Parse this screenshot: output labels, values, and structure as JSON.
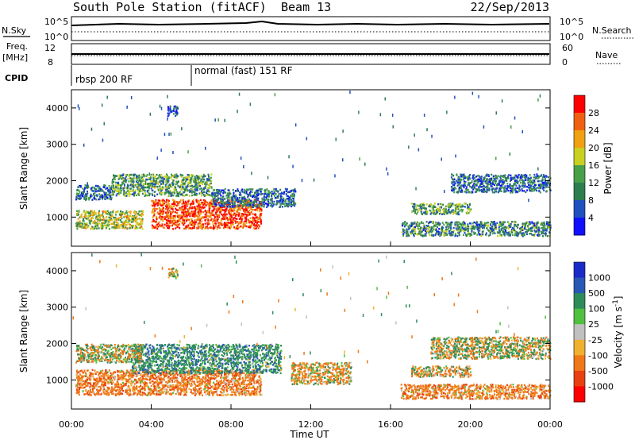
{
  "header": {
    "station": "South Pole Station (fitACF)",
    "beam": "Beam 13",
    "date": "22/Sep/2013"
  },
  "aux_panel": {
    "nsky_label": "N.Sky",
    "nsearch_label": "N.Search",
    "nsky_ticks": [
      "10^5",
      "10^0"
    ],
    "freq_label": "Freq.",
    "freq_unit": "[MHz]",
    "freq_ticks": [
      "12",
      "8"
    ],
    "nave_label": "Nave",
    "nave_ticks": [
      "60",
      "0"
    ],
    "cpid_label": "CPID",
    "cpid_modes": [
      {
        "label": "rbsp 200 RF",
        "start_hour": 0
      },
      {
        "label": "normal (fast) 151 RF",
        "start_hour": 6
      }
    ]
  },
  "colors": {
    "power": [
      "#1010ff",
      "#2050c0",
      "#2e7d4f",
      "#48a048",
      "#c8d020",
      "#f0a010",
      "#f06010",
      "#ff0000"
    ],
    "velocity": [
      "#ff0000",
      "#e84010",
      "#f07818",
      "#f0b030",
      "#c0c0c0",
      "#50c040",
      "#2e8c5a",
      "#2858b4",
      "#1a2cc8"
    ]
  },
  "chart_data": [
    {
      "type": "heatmap",
      "title": "",
      "ylabel": "Slant Range [km]",
      "xlabel": "",
      "xlim": [
        0,
        24
      ],
      "ylim": [
        200,
        4500
      ],
      "yticks": [
        "1000",
        "2000",
        "3000",
        "4000"
      ],
      "colorbar_label": "Power [dB]",
      "colorbar_ticks": [
        "4",
        "8",
        "12",
        "16",
        "20",
        "24",
        "28"
      ],
      "colorbar_range": [
        0,
        30
      ],
      "regions": [
        {
          "t0": 0.2,
          "t1": 3.6,
          "r0": 700,
          "r1": 1200,
          "value": 16
        },
        {
          "t0": 4.0,
          "t1": 9.5,
          "r0": 700,
          "r1": 1500,
          "value": 26
        },
        {
          "t0": 0.2,
          "t1": 2.0,
          "r0": 1500,
          "r1": 1900,
          "value": 8
        },
        {
          "t0": 2.0,
          "t1": 7.0,
          "r0": 1600,
          "r1": 2200,
          "value": 12
        },
        {
          "t0": 7.0,
          "t1": 11.2,
          "r0": 1300,
          "r1": 1800,
          "value": 8
        },
        {
          "t0": 16.5,
          "t1": 24.0,
          "r0": 500,
          "r1": 900,
          "value": 10
        },
        {
          "t0": 17.0,
          "t1": 20.0,
          "r0": 1100,
          "r1": 1400,
          "value": 12
        },
        {
          "t0": 19.0,
          "t1": 24.0,
          "r0": 1700,
          "r1": 2200,
          "value": 8
        },
        {
          "t0": 4.8,
          "t1": 5.3,
          "r0": 3800,
          "r1": 4100,
          "value": 6
        }
      ]
    },
    {
      "type": "heatmap",
      "title": "",
      "ylabel": "Slant Range [km]",
      "xlabel": "Time UT",
      "xlim": [
        0,
        24
      ],
      "ylim": [
        200,
        4500
      ],
      "yticks": [
        "1000",
        "2000",
        "3000",
        "4000"
      ],
      "xticks": [
        "00:00",
        "04:00",
        "08:00",
        "12:00",
        "16:00",
        "20:00",
        "00:00"
      ],
      "colorbar_label": "Velocity [m s^-1]",
      "colorbar_ticks": [
        "1000",
        "500",
        "100",
        "25",
        "-25",
        "-100",
        "-500",
        "-1000"
      ],
      "regions": [
        {
          "t0": 0.2,
          "t1": 9.5,
          "r0": 600,
          "r1": 1300,
          "value": -300
        },
        {
          "t0": 3.0,
          "t1": 10.5,
          "r0": 1200,
          "r1": 2000,
          "value": 300
        },
        {
          "t0": 0.2,
          "t1": 3.5,
          "r0": 1500,
          "r1": 2000,
          "value": 0
        },
        {
          "t0": 16.5,
          "t1": 24.0,
          "r0": 500,
          "r1": 900,
          "value": -300
        },
        {
          "t0": 17.0,
          "t1": 20.0,
          "r0": 1100,
          "r1": 1400,
          "value": -100
        },
        {
          "t0": 18.0,
          "t1": 24.0,
          "r0": 1600,
          "r1": 2200,
          "value": 0
        },
        {
          "t0": 11.0,
          "t1": 14.0,
          "r0": 900,
          "r1": 1500,
          "value": -150
        },
        {
          "t0": 4.8,
          "t1": 5.3,
          "r0": 3800,
          "r1": 4100,
          "value": -50
        }
      ]
    }
  ]
}
